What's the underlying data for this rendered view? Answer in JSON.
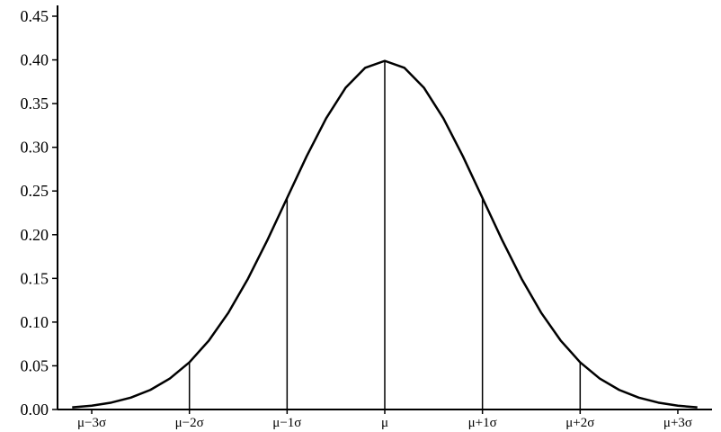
{
  "chart_data": {
    "type": "line",
    "title": "",
    "xlabel": "",
    "ylabel": "",
    "xlim": [
      -3.35,
      3.35
    ],
    "ylim": [
      0,
      0.45
    ],
    "grid": false,
    "y_ticks": [
      {
        "value": 0.0,
        "label": "0.00"
      },
      {
        "value": 0.05,
        "label": "0.05"
      },
      {
        "value": 0.1,
        "label": "0.10"
      },
      {
        "value": 0.15,
        "label": "0.15"
      },
      {
        "value": 0.2,
        "label": "0.20"
      },
      {
        "value": 0.25,
        "label": "0.25"
      },
      {
        "value": 0.3,
        "label": "0.30"
      },
      {
        "value": 0.35,
        "label": "0.35"
      },
      {
        "value": 0.4,
        "label": "0.40"
      },
      {
        "value": 0.45,
        "label": "0.45"
      }
    ],
    "x_ticks": [
      {
        "value": -3,
        "label": "μ−3σ"
      },
      {
        "value": -2,
        "label": "μ−2σ"
      },
      {
        "value": -1,
        "label": "μ−1σ"
      },
      {
        "value": 0,
        "label": "μ"
      },
      {
        "value": 1,
        "label": "μ+1σ"
      },
      {
        "value": 2,
        "label": "μ+2σ"
      },
      {
        "value": 3,
        "label": "μ+3σ"
      }
    ],
    "series": [
      {
        "x": [
          -3.2,
          -3.0,
          -2.8,
          -2.6,
          -2.4,
          -2.2,
          -2.0,
          -1.8,
          -1.6,
          -1.4,
          -1.2,
          -1.0,
          -0.8,
          -0.6,
          -0.4,
          -0.2,
          0.0,
          0.2,
          0.4,
          0.6,
          0.8,
          1.0,
          1.2,
          1.4,
          1.6,
          1.8,
          2.0,
          2.2,
          2.4,
          2.6,
          2.8,
          3.0,
          3.2
        ],
        "values": [
          0.0024,
          0.0044,
          0.0079,
          0.0136,
          0.0224,
          0.0355,
          0.054,
          0.079,
          0.1109,
          0.1497,
          0.1942,
          0.242,
          0.2897,
          0.3332,
          0.3683,
          0.391,
          0.3989,
          0.391,
          0.3683,
          0.3332,
          0.2897,
          0.242,
          0.1942,
          0.1497,
          0.1109,
          0.079,
          0.054,
          0.0355,
          0.0224,
          0.0136,
          0.0079,
          0.0044,
          0.0024
        ]
      }
    ],
    "vertical_lines": [
      {
        "x": -2,
        "y": 0.054
      },
      {
        "x": -1,
        "y": 0.242
      },
      {
        "x": 0,
        "y": 0.3989
      },
      {
        "x": 1,
        "y": 0.242
      },
      {
        "x": 2,
        "y": 0.054
      }
    ],
    "colors": {
      "line": "#000000",
      "background": "#ffffff"
    }
  }
}
